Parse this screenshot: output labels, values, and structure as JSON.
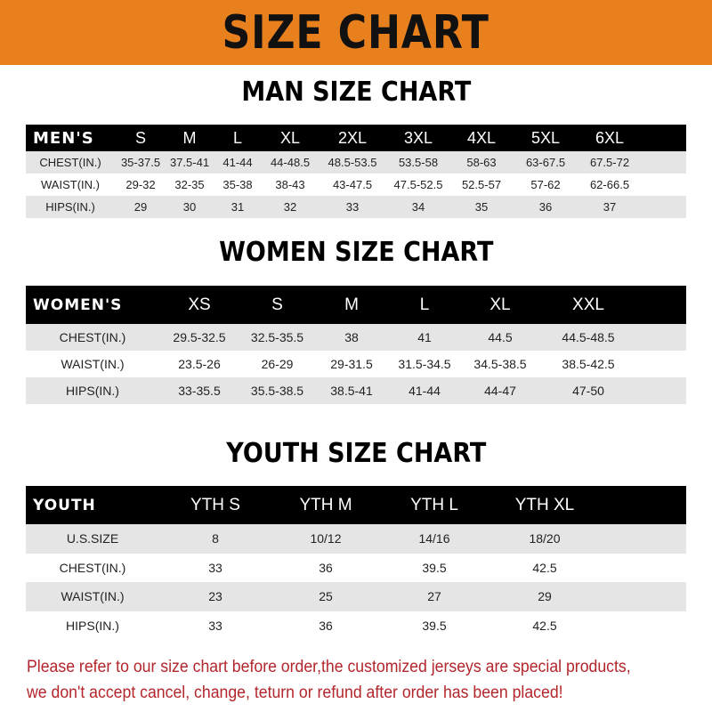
{
  "banner": {
    "title": "SIZE CHART",
    "color": "#e8801e"
  },
  "men": {
    "title": "MAN SIZE CHART",
    "headers": [
      "MEN'S",
      "S",
      "M",
      "L",
      "XL",
      "2XL",
      "3XL",
      "4XL",
      "5XL",
      "6XL"
    ],
    "rows": [
      [
        "CHEST(IN.)",
        "35-37.5",
        "37.5-41",
        "41-44",
        "44-48.5",
        "48.5-53.5",
        "53.5-58",
        "58-63",
        "63-67.5",
        "67.5-72"
      ],
      [
        "WAIST(IN.)",
        "29-32",
        "32-35",
        "35-38",
        "38-43",
        "43-47.5",
        "47.5-52.5",
        "52.5-57",
        "57-62",
        "62-66.5"
      ],
      [
        "HIPS(IN.)",
        "29",
        "30",
        "31",
        "32",
        "33",
        "34",
        "35",
        "36",
        "37"
      ]
    ]
  },
  "women": {
    "title": "WOMEN SIZE CHART",
    "headers": [
      "WOMEN'S",
      "XS",
      "S",
      "M",
      "L",
      "XL",
      "XXL"
    ],
    "rows": [
      [
        "CHEST(IN.)",
        "29.5-32.5",
        "32.5-35.5",
        "38",
        "41",
        "44.5",
        "44.5-48.5"
      ],
      [
        "WAIST(IN.)",
        "23.5-26",
        "26-29",
        "29-31.5",
        "31.5-34.5",
        "34.5-38.5",
        "38.5-42.5"
      ],
      [
        "HIPS(IN.)",
        "33-35.5",
        "35.5-38.5",
        "38.5-41",
        "41-44",
        "44-47",
        "47-50"
      ]
    ]
  },
  "youth": {
    "title": "YOUTH SIZE CHART",
    "headers": [
      "YOUTH",
      "YTH S",
      "YTH M",
      "YTH L",
      "YTH XL"
    ],
    "rows": [
      [
        "U.S.SIZE",
        "8",
        "10/12",
        "14/16",
        "18/20"
      ],
      [
        "CHEST(IN.)",
        "33",
        "36",
        "39.5",
        "42.5"
      ],
      [
        "WAIST(IN.)",
        "23",
        "25",
        "27",
        "29"
      ],
      [
        "HIPS(IN.)",
        "33",
        "36",
        "39.5",
        "42.5"
      ]
    ]
  },
  "footer": {
    "line1": "Please refer to our size chart before order,the customized jerseys are special products,",
    "line2": "we don't accept cancel, change, teturn or refund after order has been placed!",
    "color": "#b3262b"
  }
}
